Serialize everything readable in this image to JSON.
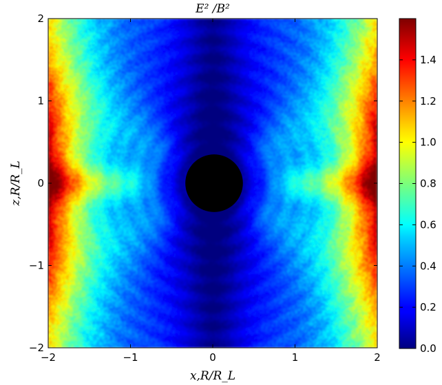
{
  "chart_data": {
    "type": "heatmap",
    "title": "E² /B²",
    "xlabel": "x,R/R_L",
    "ylabel": "z,R/R_L",
    "xlim": [
      -2,
      2
    ],
    "ylim": [
      -2,
      2
    ],
    "x_ticks": [
      "−2",
      "−1",
      "0",
      "1",
      "2"
    ],
    "y_ticks": [
      "−2",
      "−1",
      "0",
      "1",
      "2"
    ],
    "colorbar": {
      "range": [
        0.0,
        1.6
      ],
      "ticks": [
        "0.0",
        "0.2",
        "0.4",
        "0.6",
        "0.8",
        "1.0",
        "1.2",
        "1.4"
      ],
      "colormap": "jet"
    },
    "central_disk": {
      "cx": 0.0,
      "cz": 0.0,
      "radius": 0.35,
      "color": "#000000"
    },
    "field_summary": {
      "center_value": 0.05,
      "diagonal_lobe_value": 0.45,
      "equatorial_band_value": 0.7,
      "edge_value_x": 1.45,
      "polar_value": 0.12
    }
  }
}
